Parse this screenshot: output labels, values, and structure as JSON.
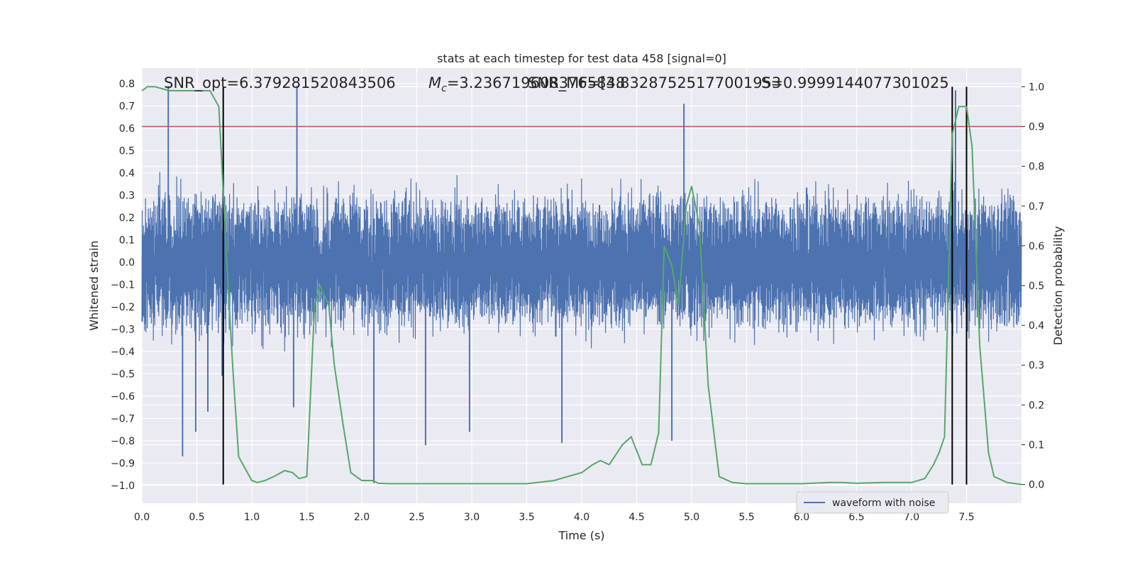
{
  "chart_data": {
    "type": "line",
    "title": "stats at each timestep for test data 458 [signal=0]",
    "xlabel": "Time (s)",
    "ylabel": "Whitened strain",
    "y2label": "Detection probability",
    "xlim": [
      0.0,
      8.0
    ],
    "ylim": [
      -1.08,
      0.87
    ],
    "y2lim": [
      -0.047,
      1.047
    ],
    "x_ticks": [
      "0.0",
      "0.5",
      "1.0",
      "1.5",
      "2.0",
      "2.5",
      "3.0",
      "3.5",
      "4.0",
      "4.5",
      "5.0",
      "5.5",
      "6.0",
      "6.5",
      "7.0",
      "7.5"
    ],
    "y_ticks": [
      "0.8",
      "0.7",
      "0.6",
      "0.5",
      "0.4",
      "0.3",
      "0.2",
      "0.1",
      "0.0",
      "−0.1",
      "−0.2",
      "−0.3",
      "−0.4",
      "−0.5",
      "−0.6",
      "−0.7",
      "−0.8",
      "−0.9",
      "−1.0"
    ],
    "y2_ticks": [
      "1.0",
      "0.9",
      "0.8",
      "0.7",
      "0.6",
      "0.5",
      "0.4",
      "0.3",
      "0.2",
      "0.1",
      "0.0"
    ],
    "grid": true,
    "legend": {
      "entries": [
        "waveform with noise"
      ],
      "placement": "lower right"
    },
    "annotations": [
      {
        "text": "SNR_opt=6.379281520843506"
      },
      {
        "prefix": "M",
        "subscript": "c",
        "text": "=3.2367196083765848"
      },
      {
        "text": "SNR_MF=[3.83287525177001953"
      },
      {
        "text": "S=0.9999144077301025"
      }
    ],
    "threshold": {
      "y2": 0.9,
      "color": "#c44e52"
    },
    "vlines_x": [
      0.74,
      7.37,
      7.5
    ],
    "colors": {
      "waveform": "#4c72b0",
      "probability": "#55a868",
      "threshold": "#c44e52",
      "vline": "#000000",
      "background": "#eaeaf2"
    },
    "series": [
      {
        "name": "waveform with noise",
        "kind": "noise",
        "sample_rate_hz": 2048,
        "typical_amplitude": 0.27,
        "extremes_note": "peaks to about +0.79 and -0.99",
        "spikes": [
          {
            "x": 0.37,
            "y": -0.87
          },
          {
            "x": 0.49,
            "y": -0.76
          },
          {
            "x": 0.6,
            "y": -0.67
          },
          {
            "x": 0.73,
            "y": -0.51
          },
          {
            "x": 1.38,
            "y": -0.65
          },
          {
            "x": 2.11,
            "y": -0.99
          },
          {
            "x": 2.58,
            "y": -0.82
          },
          {
            "x": 2.98,
            "y": -0.76
          },
          {
            "x": 3.82,
            "y": -0.81
          },
          {
            "x": 4.82,
            "y": -0.8
          },
          {
            "x": 0.24,
            "y": 0.79
          },
          {
            "x": 1.41,
            "y": 0.79
          },
          {
            "x": 7.4,
            "y": 0.77
          },
          {
            "x": 4.93,
            "y": 0.71
          }
        ]
      },
      {
        "name": "",
        "axis": "right",
        "x": [
          0.0,
          0.05,
          0.12,
          0.25,
          0.37,
          0.5,
          0.62,
          0.7,
          0.78,
          0.83,
          0.88,
          1.0,
          1.05,
          1.12,
          1.2,
          1.3,
          1.37,
          1.43,
          1.5,
          1.57,
          1.62,
          1.7,
          1.75,
          1.83,
          1.9,
          2.0,
          2.1,
          2.15,
          2.25,
          2.5,
          2.75,
          3.0,
          3.25,
          3.5,
          3.75,
          3.87,
          4.0,
          4.1,
          4.17,
          4.25,
          4.37,
          4.45,
          4.55,
          4.63,
          4.7,
          4.75,
          4.82,
          4.88,
          4.95,
          5.0,
          5.07,
          5.15,
          5.25,
          5.37,
          5.5,
          5.75,
          6.0,
          6.25,
          6.37,
          6.5,
          6.75,
          6.87,
          7.0,
          7.12,
          7.2,
          7.25,
          7.3,
          7.37,
          7.43,
          7.5,
          7.55,
          7.62,
          7.7,
          7.75,
          7.87,
          8.0
        ],
        "y": [
          0.99,
          1.0,
          1.0,
          0.99,
          0.99,
          0.99,
          0.99,
          0.95,
          0.52,
          0.28,
          0.07,
          0.01,
          0.005,
          0.01,
          0.02,
          0.035,
          0.03,
          0.015,
          0.02,
          0.45,
          0.5,
          0.45,
          0.3,
          0.15,
          0.03,
          0.01,
          0.01,
          0.003,
          0.002,
          0.002,
          0.002,
          0.002,
          0.002,
          0.002,
          0.01,
          0.02,
          0.03,
          0.05,
          0.06,
          0.05,
          0.1,
          0.12,
          0.05,
          0.05,
          0.13,
          0.6,
          0.55,
          0.45,
          0.7,
          0.75,
          0.65,
          0.25,
          0.02,
          0.005,
          0.002,
          0.002,
          0.002,
          0.005,
          0.005,
          0.003,
          0.005,
          0.005,
          0.005,
          0.015,
          0.05,
          0.08,
          0.12,
          0.88,
          0.95,
          0.95,
          0.85,
          0.35,
          0.08,
          0.02,
          0.005,
          0.0
        ]
      }
    ]
  }
}
